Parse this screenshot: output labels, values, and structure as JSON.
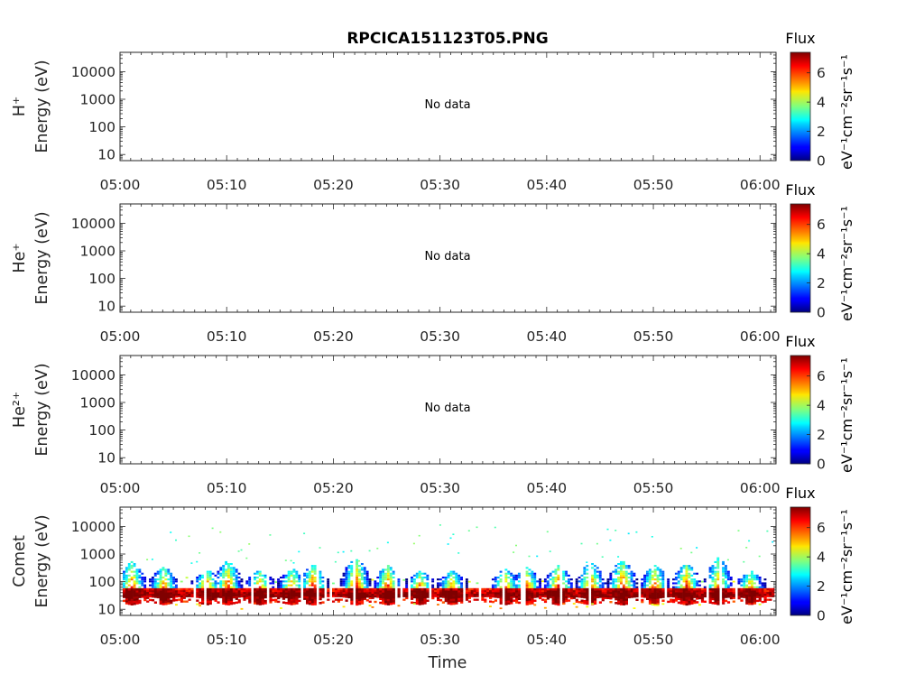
{
  "title": "RPCICA151123T05.PNG",
  "x_axis_label": "Time",
  "no_data_text": "No data",
  "colorbar": {
    "title": "Flux",
    "unit_label": "eV⁻¹cm⁻²sr⁻¹s⁻¹",
    "ticks": [
      "0",
      "2",
      "4",
      "6"
    ],
    "range": [
      0,
      7.4
    ],
    "colormap": "jet"
  },
  "chart_data": [
    {
      "type": "heatmap",
      "species": "H+",
      "ylabel_species": "H⁺",
      "ylabel_unit": "Energy (eV)",
      "y_scale": "log",
      "y_ticks": [
        "10",
        "100",
        "1000",
        "10000"
      ],
      "ylim": [
        6,
        50000
      ],
      "x_ticks": [
        "05:00",
        "05:10",
        "05:20",
        "05:30",
        "05:40",
        "05:50",
        "06:00"
      ],
      "xlim": [
        "05:00",
        "06:01.5"
      ],
      "has_data": false
    },
    {
      "type": "heatmap",
      "species": "He+",
      "ylabel_species": "He⁺",
      "ylabel_unit": "Energy (eV)",
      "y_scale": "log",
      "y_ticks": [
        "10",
        "100",
        "1000",
        "10000"
      ],
      "ylim": [
        6,
        50000
      ],
      "x_ticks": [
        "05:00",
        "05:10",
        "05:20",
        "05:30",
        "05:40",
        "05:50",
        "06:00"
      ],
      "xlim": [
        "05:00",
        "06:01.5"
      ],
      "has_data": false
    },
    {
      "type": "heatmap",
      "species": "He2+",
      "ylabel_species": "He²⁺",
      "ylabel_unit": "Energy (eV)",
      "y_scale": "log",
      "y_ticks": [
        "10",
        "100",
        "1000",
        "10000"
      ],
      "ylim": [
        6,
        50000
      ],
      "x_ticks": [
        "05:00",
        "05:10",
        "05:20",
        "05:30",
        "05:40",
        "05:50",
        "06:00"
      ],
      "xlim": [
        "05:00",
        "06:01.5"
      ],
      "has_data": false
    },
    {
      "type": "heatmap",
      "species": "Comet",
      "ylabel_species": "Comet",
      "ylabel_unit": "Energy (eV)",
      "y_scale": "log",
      "y_ticks": [
        "10",
        "100",
        "1000",
        "10000"
      ],
      "ylim": [
        6,
        50000
      ],
      "x_ticks": [
        "05:00",
        "05:10",
        "05:20",
        "05:30",
        "05:40",
        "05:50",
        "06:00"
      ],
      "xlim": [
        "05:00",
        "06:01.5"
      ],
      "has_data": true,
      "main_band_energy_eV": [
        20,
        60
      ],
      "main_band_flux": [
        5,
        7.2
      ],
      "enhancements": [
        {
          "t": "05:01",
          "flux": 6.5,
          "top_eV": 400
        },
        {
          "t": "05:04",
          "flux": 6.2,
          "top_eV": 250
        },
        {
          "t": "05:08",
          "flux": 6.5,
          "top_eV": 180
        },
        {
          "t": "05:10",
          "flux": 6.6,
          "top_eV": 450
        },
        {
          "t": "05:13",
          "flux": 6.2,
          "top_eV": 180
        },
        {
          "t": "05:16",
          "flux": 6.0,
          "top_eV": 200
        },
        {
          "t": "05:18",
          "flux": 6.8,
          "top_eV": 300
        },
        {
          "t": "05:22",
          "flux": 7.0,
          "top_eV": 600
        },
        {
          "t": "05:25",
          "flux": 6.5,
          "top_eV": 300
        },
        {
          "t": "05:28",
          "flux": 6.0,
          "top_eV": 150
        },
        {
          "t": "05:31",
          "flux": 5.8,
          "top_eV": 150
        },
        {
          "t": "05:36",
          "flux": 6.2,
          "top_eV": 200
        },
        {
          "t": "05:38",
          "flux": 6.3,
          "top_eV": 250
        },
        {
          "t": "05:41",
          "flux": 6.9,
          "top_eV": 300
        },
        {
          "t": "05:44",
          "flux": 6.6,
          "top_eV": 400
        },
        {
          "t": "05:47",
          "flux": 6.8,
          "top_eV": 500
        },
        {
          "t": "05:50",
          "flux": 6.5,
          "top_eV": 300
        },
        {
          "t": "05:53",
          "flux": 6.6,
          "top_eV": 350
        },
        {
          "t": "05:56",
          "flux": 6.0,
          "top_eV": 600
        },
        {
          "t": "05:59",
          "flux": 5.8,
          "top_eV": 150
        }
      ],
      "scattered_high_energy_range_eV": [
        400,
        12000
      ]
    }
  ]
}
